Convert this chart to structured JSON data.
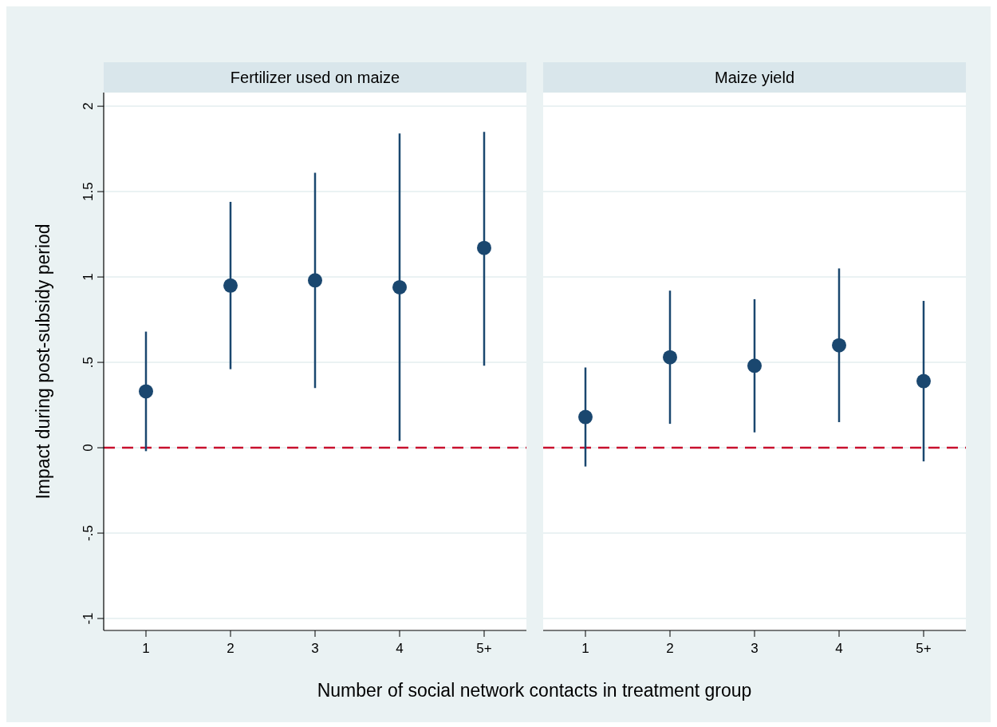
{
  "chart_data": [
    {
      "type": "scatter",
      "title": "Fertilizer used on maize",
      "ylabel": "Impact during post-subsidy period",
      "xlabel": "Number of social network contacts in treatment group",
      "categories": [
        "1",
        "2",
        "3",
        "4",
        "5+"
      ],
      "series": [
        {
          "color": "#1a476f",
          "values": [
            0.33,
            0.95,
            0.98,
            0.94,
            1.17
          ],
          "errors": [
            [
              -0.02,
              0.68
            ],
            [
              0.46,
              1.44
            ],
            [
              0.35,
              1.61
            ],
            [
              0.04,
              1.84
            ],
            [
              0.48,
              1.85
            ]
          ]
        }
      ],
      "ylim": [
        -1.07,
        2.08
      ],
      "yticks": [
        {
          "value": -1,
          "label": "-1"
        },
        {
          "value": -0.5,
          "label": "-.5"
        },
        0,
        {
          "value": 0.5,
          "label": ".5"
        },
        1,
        1.5,
        2
      ],
      "ref_lines": [
        {
          "axis": "y",
          "value": 0,
          "color": "#c8102e",
          "line_style": "dashed"
        }
      ],
      "grid": "y",
      "marker": "circle"
    },
    {
      "type": "scatter",
      "title": "Maize yield",
      "categories": [
        "1",
        "2",
        "3",
        "4",
        "5+"
      ],
      "series": [
        {
          "color": "#1a476f",
          "values": [
            0.18,
            0.53,
            0.48,
            0.6,
            0.39
          ],
          "errors": [
            [
              -0.11,
              0.47
            ],
            [
              0.14,
              0.92
            ],
            [
              0.09,
              0.87
            ],
            [
              0.15,
              1.05
            ],
            [
              -0.08,
              0.86
            ]
          ]
        }
      ],
      "ylim": [
        -1.07,
        2.08
      ],
      "yticks": [
        -1,
        -0.5,
        0,
        0.5,
        1,
        1.5,
        2
      ],
      "tick_labels": "x",
      "ref_lines": [
        {
          "axis": "y",
          "value": 0,
          "color": "#c8102e",
          "line_style": "dashed"
        }
      ],
      "grid": "y",
      "marker": "circle"
    }
  ]
}
